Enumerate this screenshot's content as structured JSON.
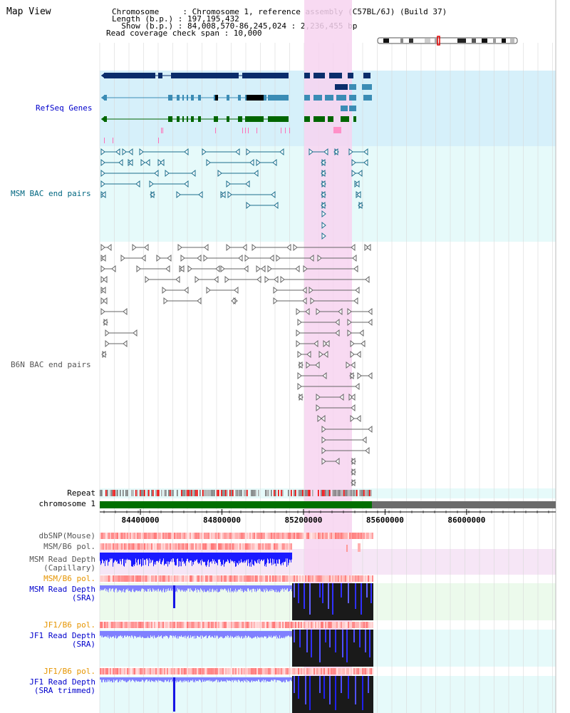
{
  "view_title": "Map View",
  "header": {
    "chromosome": "Chromosome     : Chromosome 1, reference assembly (C57BL/6J) (Build 37)",
    "length": "Length (b.p.) : 197,195,432",
    "show": "  Show (b.p.) : 84,008,570-86,245,024 : 2,236,455 bp",
    "span": "Read coverage check span : 10,000"
  },
  "tracks": {
    "refseq": "RefSeq Genes",
    "msm_bac": "MSM BAC end pairs",
    "b6n_bac": "B6N BAC end pairs",
    "repeat": "Repeat",
    "chromosome": "chromosome 1",
    "dbsnp": "dbSNP(Mouse)",
    "msm_b6_pol_top": "MSM/B6 pol.",
    "msm_read_cap_1": "MSM Read Depth",
    "msm_read_cap_2": "(Capillary)",
    "msm_b6_pol": "MSM/B6 pol.",
    "msm_read_sra_1": "MSM Read Depth",
    "msm_read_sra_2": "(SRA)",
    "jf1_b6_pol_1": "JF1/B6 pol.",
    "jf1_read_sra_1": "JF1 Read Depth",
    "jf1_read_sra_2": "(SRA)",
    "jf1_b6_pol_2": "JF1/B6 pol.",
    "jf1_read_trim_1": "JF1 Read Depth",
    "jf1_read_trim_2": "(SRA trimmed)"
  },
  "axis_ticks": [
    {
      "label": "84400000",
      "bp": 84400000
    },
    {
      "label": "84800000",
      "bp": 84800000
    },
    {
      "label": "85200000",
      "bp": 85200000
    },
    {
      "label": "85600000",
      "bp": 85600000
    },
    {
      "label": "86000000",
      "bp": 86000000
    }
  ],
  "colors": {
    "highlight": "#f7d4f0",
    "refseq_bg": "#d6f0fa",
    "msm_bg": "#e6fafa",
    "gene_dark": "#0a2d6b",
    "gene_mid": "#3b8cb5",
    "gene_green": "#006600",
    "chrom_green": "#007000",
    "chrom_grey": "#6b6b6b",
    "bac_msm": "#1c6e8c",
    "bac_b6n": "#666666",
    "depth_blue": "#1515e6",
    "depth_light": "#8080ff",
    "label_blue": "#0000cc",
    "label_teal": "#006680",
    "label_orange": "#e69500",
    "label_grey": "#555555"
  }
}
